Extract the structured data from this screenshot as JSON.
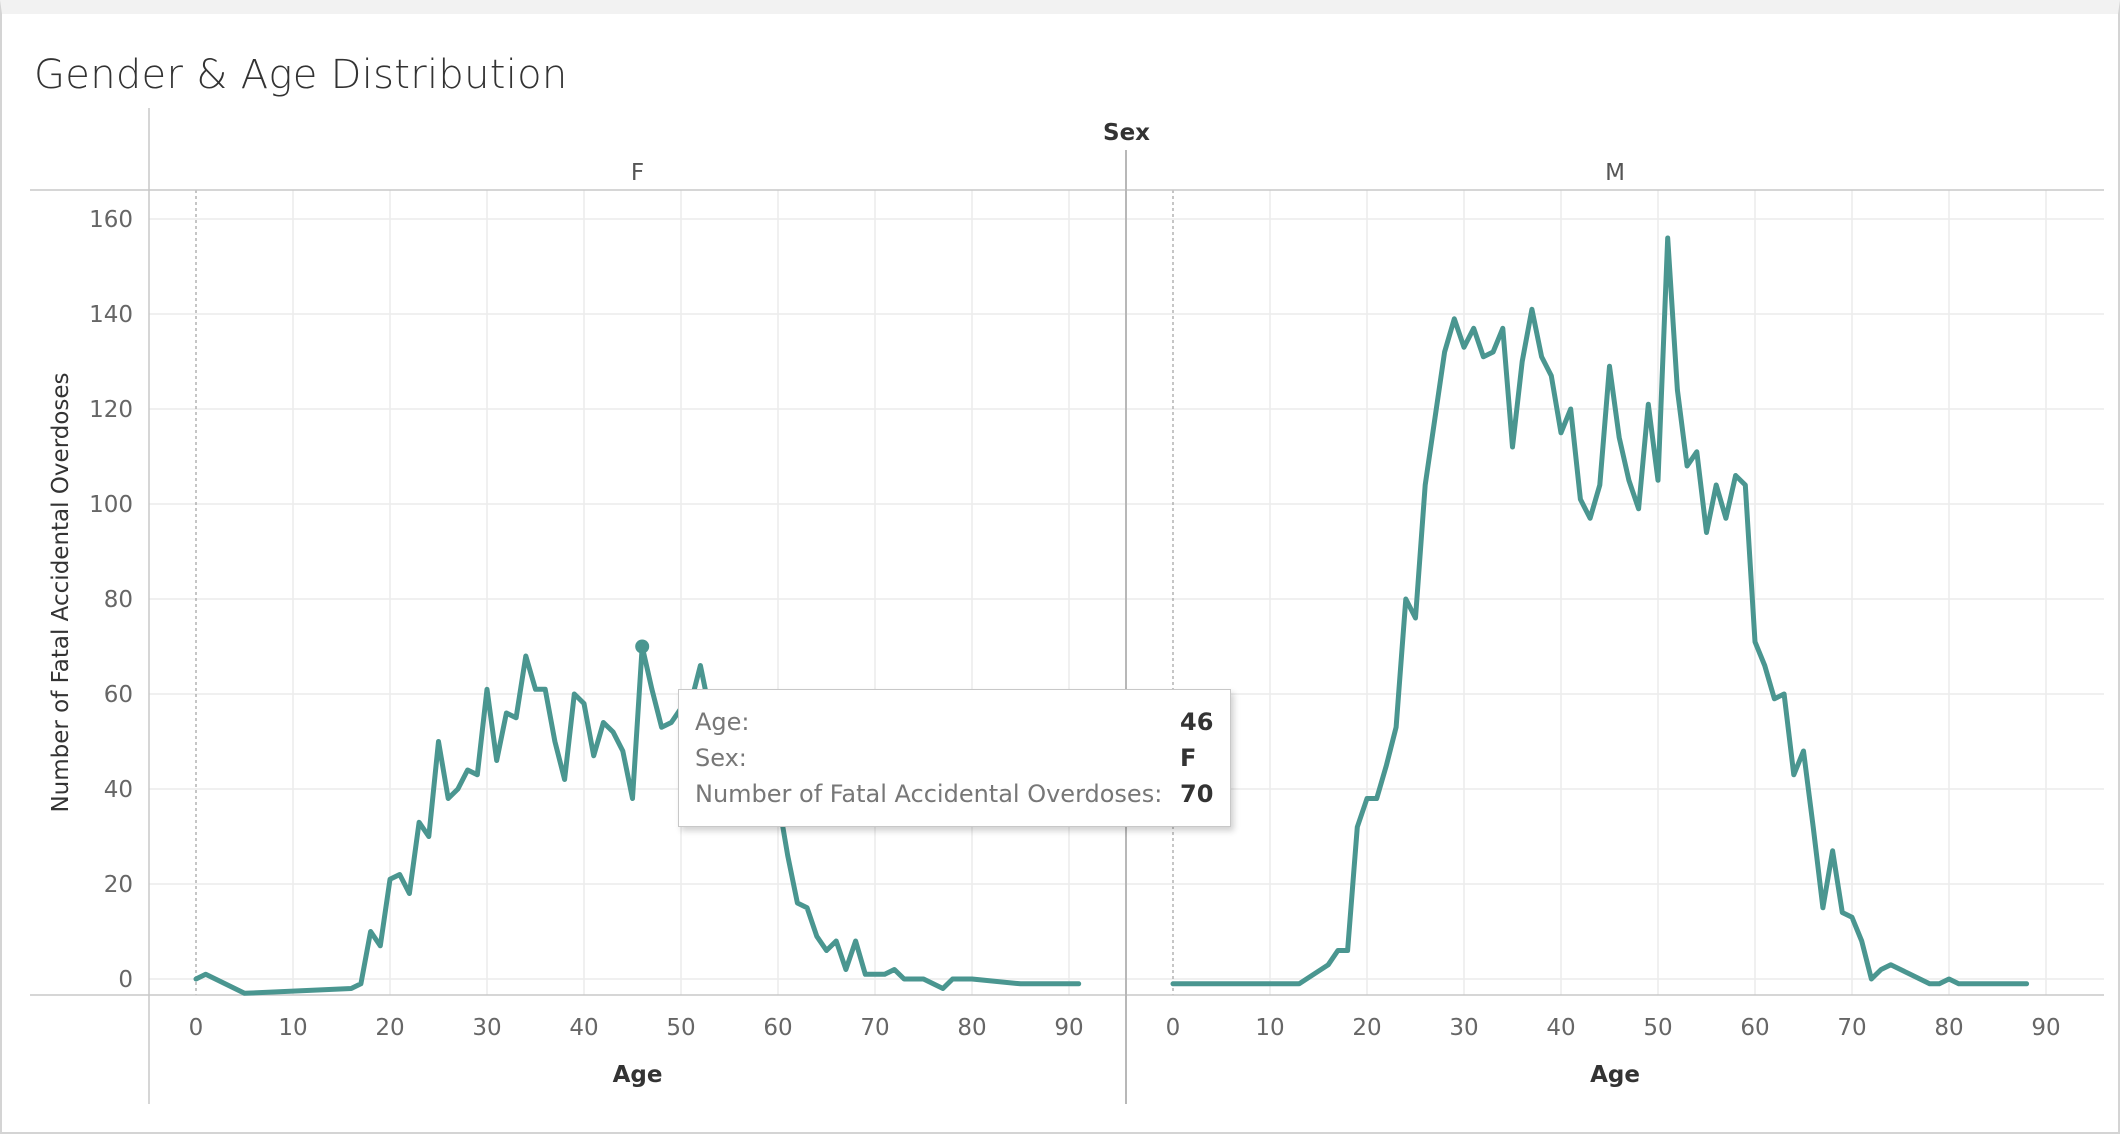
{
  "title": "Gender & Age Distribution",
  "chart_data": {
    "type": "line",
    "title": "Gender & Age Distribution",
    "xlabel": "Age",
    "ylabel": "Number of Fatal Accidental Overdoses",
    "facet_title": "Sex",
    "ylim": [
      0,
      160
    ],
    "yticks": [
      0,
      20,
      40,
      60,
      80,
      100,
      120,
      140,
      160
    ],
    "xlim": [
      -2,
      96
    ],
    "xticks": [
      0,
      10,
      20,
      30,
      40,
      50,
      60,
      70,
      80,
      90
    ],
    "grid": true,
    "color": "#4a9690",
    "panels": [
      {
        "name": "F",
        "x": [
          0,
          1,
          5,
          16,
          17,
          18,
          19,
          20,
          21,
          22,
          23,
          24,
          25,
          26,
          27,
          28,
          29,
          30,
          31,
          32,
          33,
          34,
          35,
          36,
          37,
          38,
          39,
          40,
          41,
          42,
          43,
          44,
          45,
          46,
          47,
          48,
          49,
          50,
          51,
          52,
          53,
          54,
          55,
          56,
          57,
          58,
          59,
          60,
          61,
          62,
          63,
          64,
          65,
          66,
          67,
          68,
          69,
          70,
          71,
          72,
          73,
          74,
          75,
          76,
          77,
          78,
          79,
          80,
          85,
          91
        ],
        "y": [
          0,
          1,
          -3,
          -2,
          -1,
          10,
          7,
          21,
          22,
          18,
          33,
          30,
          50,
          38,
          40,
          44,
          43,
          61,
          46,
          56,
          55,
          68,
          61,
          61,
          50,
          42,
          60,
          58,
          47,
          54,
          52,
          48,
          38,
          70,
          61,
          53,
          54,
          57,
          58,
          66,
          56,
          52,
          48,
          46,
          40,
          36,
          34,
          38,
          26,
          16,
          15,
          9,
          6,
          8,
          2,
          8,
          1,
          1,
          1,
          2,
          0,
          0,
          0,
          -1,
          -2,
          0,
          0,
          0,
          -1,
          -1
        ]
      },
      {
        "name": "M",
        "x": [
          0,
          1,
          10,
          13,
          16,
          17,
          18,
          19,
          20,
          21,
          22,
          23,
          24,
          25,
          26,
          27,
          28,
          29,
          30,
          31,
          32,
          33,
          34,
          35,
          36,
          37,
          38,
          39,
          40,
          41,
          42,
          43,
          44,
          45,
          46,
          47,
          48,
          49,
          50,
          51,
          52,
          53,
          54,
          55,
          56,
          57,
          58,
          59,
          60,
          61,
          62,
          63,
          64,
          65,
          66,
          67,
          68,
          69,
          70,
          71,
          72,
          73,
          74,
          75,
          76,
          77,
          78,
          79,
          80,
          81,
          82,
          83,
          84,
          85,
          86,
          87,
          88
        ],
        "y": [
          -1,
          -1,
          -1,
          -1,
          3,
          6,
          6,
          32,
          38,
          38,
          45,
          53,
          80,
          76,
          104,
          118,
          132,
          139,
          133,
          137,
          131,
          132,
          137,
          112,
          130,
          141,
          131,
          127,
          115,
          120,
          101,
          97,
          104,
          129,
          114,
          105,
          99,
          121,
          105,
          156,
          124,
          108,
          111,
          94,
          104,
          97,
          106,
          104,
          71,
          66,
          59,
          60,
          43,
          48,
          32,
          15,
          27,
          14,
          13,
          8,
          0,
          2,
          3,
          2,
          1,
          0,
          -1,
          -1,
          0,
          -1,
          -1,
          -1,
          -1,
          -1,
          -1,
          -1,
          -1
        ]
      }
    ]
  },
  "tooltip": {
    "rows": [
      {
        "label": "Age:",
        "value": "46"
      },
      {
        "label": "Sex:",
        "value": "F"
      },
      {
        "label": "Number of Fatal Accidental Overdoses:",
        "value": "70"
      }
    ],
    "highlight": {
      "panel": "F",
      "x": 46,
      "y": 70
    }
  }
}
